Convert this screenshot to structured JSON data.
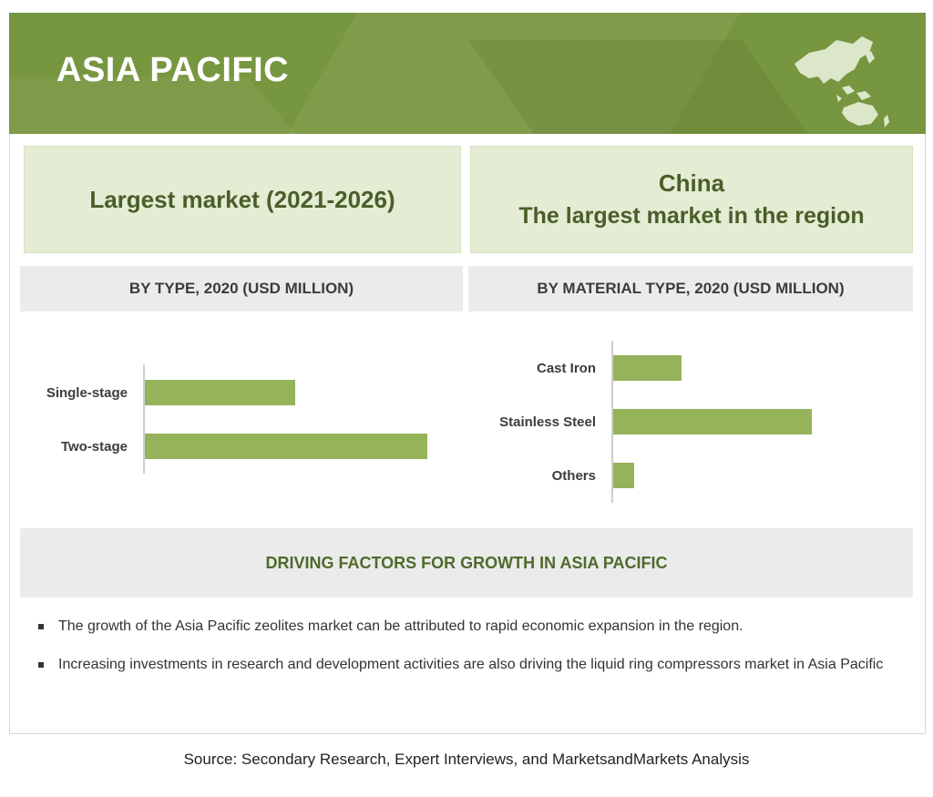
{
  "banner": {
    "title": "ASIA PACIFIC",
    "color": "#76963f"
  },
  "highlights": {
    "left": {
      "text": "Largest market  (2021-2026)"
    },
    "right": {
      "country": "China",
      "text": "The largest market in the region"
    }
  },
  "chart_data": [
    {
      "type": "bar",
      "orientation": "horizontal",
      "title": "BY TYPE, 2020 (USD MILLION)",
      "categories": [
        "Single-stage",
        "Two-stage"
      ],
      "values": [
        165,
        310
      ],
      "xlim": [
        0,
        320
      ],
      "bar_color": "#94b35a",
      "grid": false
    },
    {
      "type": "bar",
      "orientation": "horizontal",
      "title": "BY MATERIAL TYPE, 2020 (USD MILLION)",
      "categories": [
        "Cast Iron",
        "Stainless Steel",
        "Others"
      ],
      "values": [
        75,
        218,
        23
      ],
      "xlim": [
        0,
        320
      ],
      "bar_color": "#94b35a",
      "grid": false
    }
  ],
  "drivers": {
    "title": "DRIVING FACTORS FOR GROWTH IN ASIA PACIFIC",
    "items": [
      "The growth of the Asia Pacific zeolites market can be attributed to rapid economic expansion in the region.",
      "Increasing investments in research and development activities are also driving the liquid ring compressors market in Asia Pacific"
    ]
  },
  "source": "Source: Secondary Research, Expert Interviews, and MarketsandMarkets Analysis",
  "icons": {
    "map": "asia-pacific-map-icon"
  }
}
